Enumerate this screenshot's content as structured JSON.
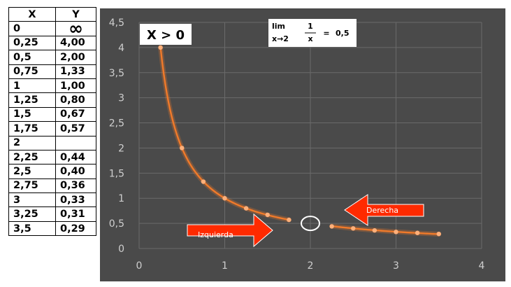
{
  "table": {
    "headers": [
      "X",
      "Y"
    ],
    "rows": [
      [
        "0",
        "∞"
      ],
      [
        "0,25",
        "4,00"
      ],
      [
        "0,5",
        "2,00"
      ],
      [
        "0,75",
        "1,33"
      ],
      [
        "1",
        "1,00"
      ],
      [
        "1,25",
        "0,80"
      ],
      [
        "1,5",
        "0,67"
      ],
      [
        "1,75",
        "0,57"
      ],
      [
        "2",
        ""
      ],
      [
        "2,25",
        "0,44"
      ],
      [
        "2,5",
        "0,40"
      ],
      [
        "2,75",
        "0,36"
      ],
      [
        "3",
        "0,33"
      ],
      [
        "3,25",
        "0,31"
      ],
      [
        "3,5",
        "0,29"
      ]
    ]
  },
  "colors": {
    "plot_background": "#4a4a4a",
    "gridline": "#6a6a6a",
    "curve": "#f07a2a",
    "arrow": "#ff2a00",
    "hole": "#ffffff"
  },
  "chart_data": {
    "type": "line",
    "xlim": [
      0,
      4
    ],
    "ylim": [
      0,
      4.5
    ],
    "x_ticks": [
      "0",
      "1",
      "2",
      "3",
      "4"
    ],
    "y_ticks": [
      "0",
      "0,5",
      "1",
      "1,5",
      "2",
      "2,5",
      "3",
      "3,5",
      "4",
      "4,5"
    ],
    "grid": true,
    "series": [
      {
        "left_branch": {
          "x": [
            0.25,
            0.5,
            0.75,
            1,
            1.25,
            1.5,
            1.75
          ],
          "y": [
            4.0,
            2.0,
            1.33,
            1.0,
            0.8,
            0.67,
            0.57
          ]
        },
        "right_branch": {
          "x": [
            2.25,
            2.5,
            2.75,
            3,
            3.25,
            3.5
          ],
          "y": [
            0.44,
            0.4,
            0.36,
            0.33,
            0.31,
            0.29
          ]
        }
      }
    ],
    "hole": {
      "x": 2,
      "y": 0.5
    },
    "annotations": {
      "domain_label": "X > 0",
      "limit": {
        "lim": "lim",
        "sub": "x→2",
        "num": "1",
        "den": "x",
        "eq": "=",
        "result": "0,5"
      },
      "arrow_left_label": "Izquierda",
      "arrow_right_label": "Derecha"
    }
  }
}
